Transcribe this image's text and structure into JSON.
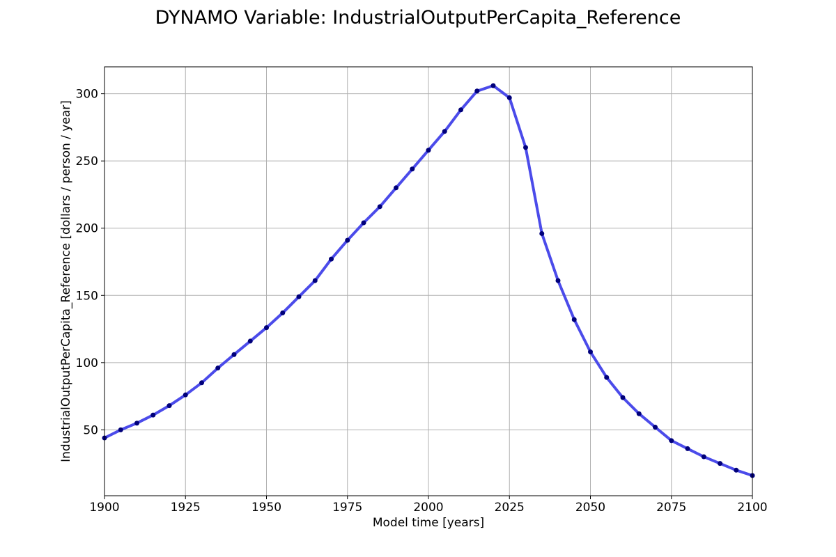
{
  "chart_data": {
    "type": "line",
    "title": "DYNAMO Variable: IndustrialOutputPerCapita_Reference",
    "xlabel": "Model time [years]",
    "ylabel": "IndustrialOutputPerCapita_Reference [dollars / person / year]",
    "xlim": [
      1900,
      2100
    ],
    "ylim": [
      1,
      320
    ],
    "xticks": [
      1900,
      1925,
      1950,
      1975,
      2000,
      2025,
      2050,
      2075,
      2100
    ],
    "yticks": [
      50,
      100,
      150,
      200,
      250,
      300
    ],
    "grid": true,
    "line_color": "#4b4bea",
    "marker_color": "#00007a",
    "x": [
      1900,
      1905,
      1910,
      1915,
      1920,
      1925,
      1930,
      1935,
      1940,
      1945,
      1950,
      1955,
      1960,
      1965,
      1970,
      1975,
      1980,
      1985,
      1990,
      1995,
      2000,
      2005,
      2010,
      2015,
      2020,
      2025,
      2030,
      2035,
      2040,
      2045,
      2050,
      2055,
      2060,
      2065,
      2070,
      2075,
      2080,
      2085,
      2090,
      2095,
      2100
    ],
    "y": [
      44,
      50,
      55,
      61,
      68,
      76,
      85,
      96,
      106,
      116,
      126,
      137,
      149,
      161,
      177,
      191,
      204,
      216,
      230,
      244,
      258,
      272,
      288,
      302,
      306,
      297,
      260,
      196,
      161,
      132,
      108,
      89,
      74,
      62,
      52,
      42,
      36,
      30,
      25,
      20,
      16
    ]
  }
}
